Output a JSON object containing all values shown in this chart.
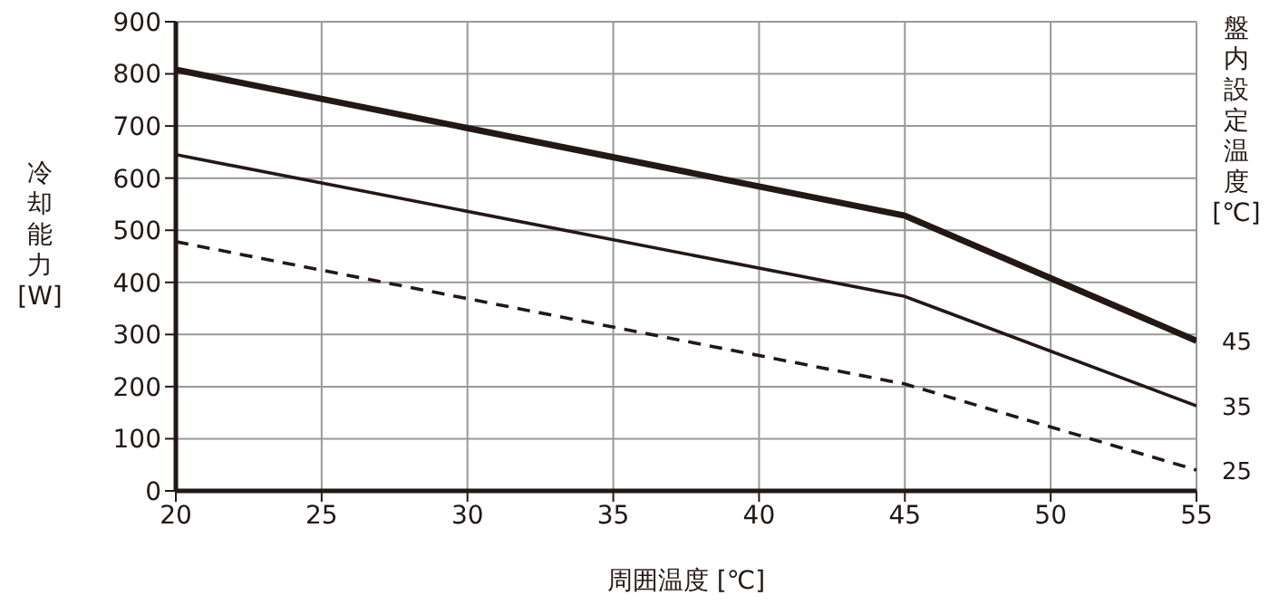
{
  "chart_data": {
    "type": "line",
    "xlabel": "周囲温度 [℃]",
    "ylabel": "冷却能力[W]",
    "y2label": "盤内設定温度[℃]",
    "x": [
      20,
      45,
      55
    ],
    "series": [
      {
        "name": "45",
        "color": "#231815",
        "values": [
          808,
          528,
          288
        ],
        "line_style": "solid"
      },
      {
        "name": "35",
        "color": "#231815",
        "values": [
          645,
          373,
          163
        ],
        "line_style": "solid"
      },
      {
        "name": "25",
        "color": "#231815",
        "values": [
          478,
          205,
          40
        ],
        "line_style": "dashed"
      }
    ],
    "xlim": [
      20,
      55
    ],
    "xticks": [
      20,
      25,
      30,
      35,
      40,
      45,
      50,
      55
    ],
    "ylim": [
      0,
      900
    ],
    "yticks": [
      0,
      100,
      200,
      300,
      400,
      500,
      600,
      700,
      800,
      900
    ],
    "grid": true,
    "marker": "none"
  }
}
